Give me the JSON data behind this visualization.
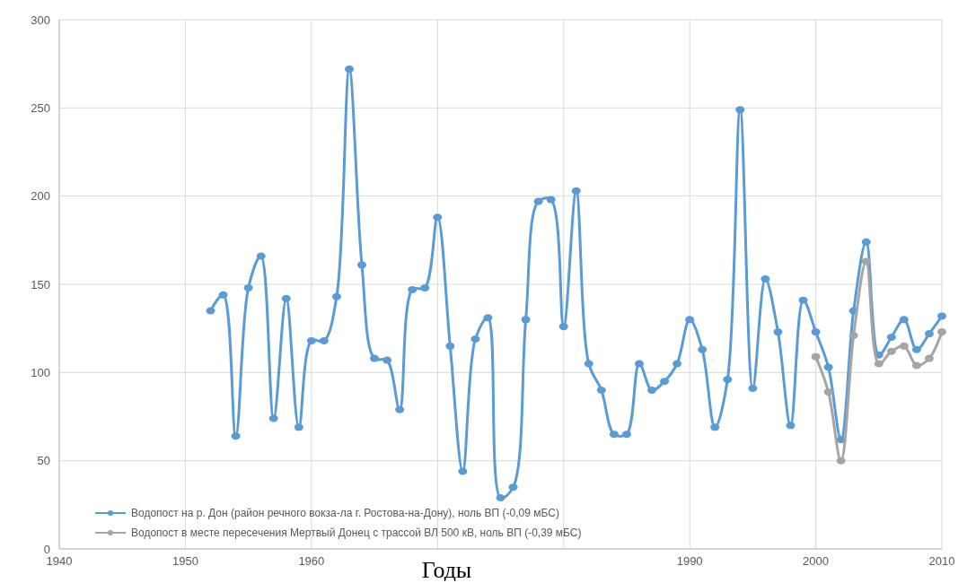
{
  "chart_data": {
    "type": "line",
    "xlabel": "Годы",
    "xlim": [
      1940,
      2010
    ],
    "xticks": [
      1940,
      1950,
      1960,
      {
        "value": 1970,
        "label": null
      },
      {
        "value": 1980,
        "label": null
      },
      1990,
      2000,
      2010
    ],
    "ylim": [
      0,
      300
    ],
    "yticks": [
      0,
      50,
      100,
      150,
      200,
      250,
      300
    ],
    "grid": true,
    "legend": "bottom left",
    "marker": "circle",
    "line_style": "solid",
    "series": [
      {
        "name": "Водопост на р. Дон (район речного вокза-ла г. Ростова-на-Дону), ноль ВП (-0,09 мБС)",
        "color": "#5b9bd5",
        "x": [
          1952,
          1953,
          1954,
          1955,
          1956,
          1957,
          1958,
          1959,
          1960,
          1961,
          1962,
          1963,
          1964,
          1965,
          1966,
          1967,
          1968,
          1969,
          1970,
          1971,
          1972,
          1973,
          1974,
          1975,
          1976,
          1977,
          1978,
          1979,
          1980,
          1981,
          1982,
          1983,
          1984,
          1985,
          1986,
          1987,
          1988,
          1989,
          1990,
          1991,
          1992,
          1993,
          1994,
          1995,
          1996,
          1997,
          1998,
          1999,
          2000,
          2001,
          2002,
          2003,
          2004,
          2005,
          2006,
          2007,
          2008,
          2009,
          2010
        ],
        "values": [
          135,
          144,
          64,
          148,
          166,
          74,
          142,
          69,
          118,
          118,
          143,
          272,
          161,
          108,
          107,
          79,
          147,
          148,
          188,
          115,
          44,
          119,
          131,
          29,
          35,
          130,
          197,
          198,
          126,
          203,
          105,
          90,
          65,
          65,
          105,
          90,
          95,
          105,
          130,
          113,
          69,
          96,
          249,
          91,
          153,
          123,
          70,
          141,
          123,
          103,
          62,
          135,
          174,
          110,
          120,
          130,
          113,
          122,
          132
        ]
      },
      {
        "name": "Водопост в месте пересечения Мертвый Донец с трассой ВЛ 500 кВ, ноль ВП (-0,39 мБС)",
        "color": "#a5a5a5",
        "x": [
          2000,
          2001,
          2002,
          2003,
          2004,
          2005,
          2006,
          2007,
          2008,
          2009,
          2010
        ],
        "values": [
          109,
          89,
          50,
          121,
          163,
          105,
          112,
          115,
          104,
          108,
          123
        ]
      }
    ]
  }
}
